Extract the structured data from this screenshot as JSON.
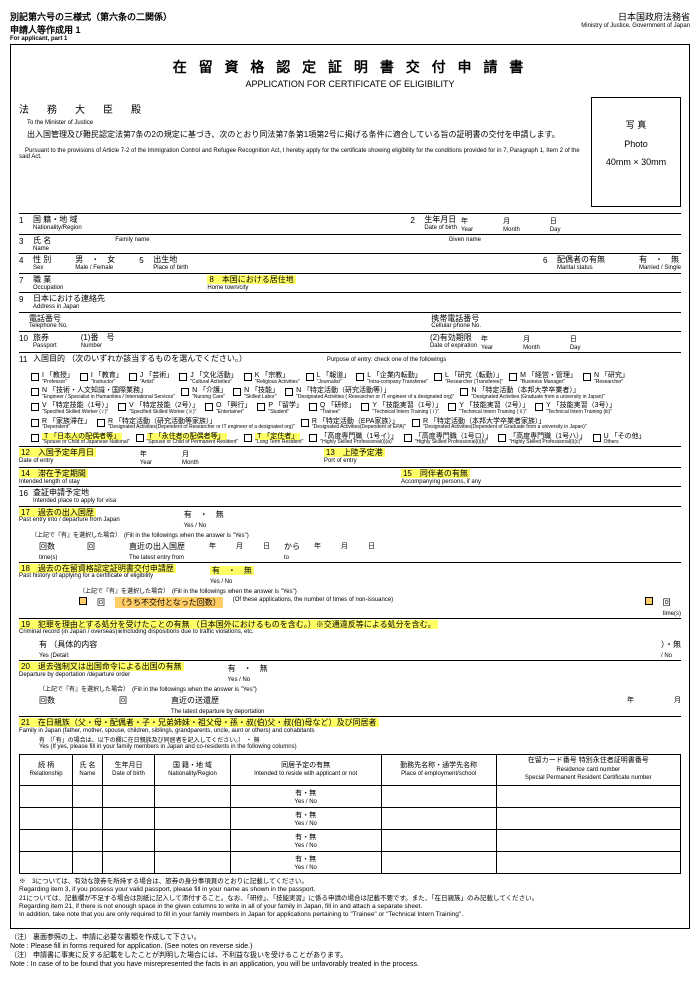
{
  "header": {
    "form_code": "別記第六号の三様式（第六条の二関係）",
    "applicant": "申請人等作成用 1",
    "applicant_en": "For applicant, part 1",
    "ministry_jp": "日本国政府法務省",
    "ministry_en": "Ministry of Justice, Government of Japan"
  },
  "title": {
    "jp": "在 留 資 格 認 定 証 明 書 交 付 申 請 書",
    "en": "APPLICATION FOR CERTIFICATE OF ELIGIBILITY"
  },
  "photo": {
    "label_jp": "写 真",
    "label_en": "Photo",
    "size": "40mm × 30mm"
  },
  "minister": {
    "jp": "法　務　大　臣　殿",
    "en": "To the Minister of Justice"
  },
  "intro": {
    "jp": "出入国管理及び難民認定法第7条の2の規定に基づき、次のとおり同法第7条第1項第2号に掲げる条件に適合している旨の証明書の交付を申請します。",
    "en": "Pursuant to the provisions of Article 7-2 of the Immigration Control and Refugee Recognition Act, I hereby apply for the certificate showing eligibility for the conditions provided for in 7, Paragraph 1, Item 2 of the said Act."
  },
  "fields": {
    "f1": {
      "jp": "国 籍・地 域",
      "en": "Nationality/Region"
    },
    "f2": {
      "jp": "生年月日",
      "en": "Date of birth"
    },
    "year": "年",
    "year_en": "Year",
    "month": "月",
    "month_en": "Month",
    "day": "日",
    "day_en": "Day",
    "f3": {
      "jp": "氏 名",
      "en": "Name"
    },
    "family_name": "Family name",
    "given_name": "Given name",
    "f4": {
      "jp": "性 別",
      "en": "Sex",
      "male_jp": "男",
      "female_jp": "女",
      "male_en": "Male",
      "female_en": "Female"
    },
    "f5": {
      "jp": "出生地",
      "en": "Place of birth"
    },
    "f6": {
      "jp": "配偶者の有無",
      "en": "Marital status",
      "yes_jp": "有",
      "no_jp": "無",
      "yes_en": "Married",
      "no_en": "Single"
    },
    "f7": {
      "jp": "職 業",
      "en": "Occupation"
    },
    "f8": {
      "jp": "本国における居住地",
      "en": "Home town/city"
    },
    "f9": {
      "jp": "日本における連絡先",
      "en": "Address in Japan"
    },
    "tel": {
      "jp": "電話番号",
      "en": "Telephone No."
    },
    "cell": {
      "jp": "携帯電話番号",
      "en": "Cellular phone No."
    },
    "f10": {
      "jp": "旅券",
      "en": "Passport"
    },
    "f10_1": {
      "jp": "(1)番　号",
      "en": "Number"
    },
    "f10_2": {
      "jp": "(2)有効期限",
      "en": "Date of expiration"
    },
    "f11": {
      "jp": "入国目的 （次のいずれか該当するものを選んでください。）",
      "en": "Purpose of entry: check one of the followings"
    },
    "f12": {
      "jp": "入国予定年月日",
      "en": "Date of entry"
    },
    "f13": {
      "jp": "上陸予定港",
      "en": "Port of entry"
    },
    "f14": {
      "jp": "滞在予定期間",
      "en": "Intended length of stay"
    },
    "f15": {
      "jp": "同伴者の有無",
      "en": "Accompanying persons, if any"
    },
    "f16": {
      "jp": "査証申請予定地",
      "en": "Intended place to apply for visa"
    },
    "f17": {
      "jp": "過去の出入国歴",
      "en": "Past entry into / departure from Japan",
      "yes": "有",
      "no": "無",
      "yes_en": "Yes",
      "no_en": "No"
    },
    "f17_sub": "（上記で『有』を選択した場合）　(Fill in the followings when the answer is \"Yes\")",
    "f17_count": {
      "jp": "回数",
      "en": "time(s)",
      "kai": "回"
    },
    "f17_latest": {
      "jp": "直近の出入国歴",
      "en": "The latest entry from",
      "from": "から",
      "to": "to"
    },
    "f18": {
      "jp": "過去の在留資格認定証明書交付申請歴",
      "en": "Past history of applying for a certificate of eligibility",
      "yes": "有",
      "no": "無"
    },
    "f18_sub": "（上記で『有』を選択した場合）　(Fill in the followings when the answer is \"Yes\")",
    "f18_count": "回",
    "f18_reject": "（うち不交付となった回数）",
    "f18_reject_en": "(Of these applications, the number of times of non-issuance)",
    "f18_times": "回",
    "f18_times_en": "time(s)",
    "f19": {
      "jp": "犯罪を理由とする処分を受けたことの有無 （日本国外におけるものを含む。）※交通違反等による処分を含む。",
      "en": "Criminal record (in Japan / overseas)※Including dispositions due to traffic violations, etc."
    },
    "f19_yes": "有 （具体的内容",
    "f19_yes_en": "Yes  (Detail:",
    "f19_no": "）・無",
    "f19_no_en": "/ No",
    "f20": {
      "jp": "退去強制又は出国命令による出国の有無",
      "en": "Departure by deportation /departure order"
    },
    "f20_sub": "（上記で『有』を選択した場合）　(Fill in the followings when the answer is \"Yes\")",
    "f20_count": "回数",
    "f20_kai": "回",
    "f20_latest": "直近の送還歴",
    "f20_latest_en": "The latest departure by deportation",
    "f21": {
      "jp": "在日親族（父・母・配偶者・子・兄弟姉妹・祖父母・孫・叔(伯)父・叔(伯)母など）及び同居者",
      "en": "Family in Japan (father, mother, spouse, children, siblings, grandparents, uncle, aunt or others) and cohabitants"
    },
    "f21_sub": {
      "jp": "有 （「有」の場合は、以下の欄に在日親族及び同居者を記入してください。） ・ 無",
      "en": "Yes  (If yes, please fill in your family members in Japan and co-residents in the following columns)"
    }
  },
  "purpose_items": [
    {
      "code": "I",
      "jp": "「教授」",
      "en": "\"Professor\""
    },
    {
      "code": "I",
      "jp": "「教育」",
      "en": "\"Instructor\""
    },
    {
      "code": "J",
      "jp": "「芸術」",
      "en": "\"Artist\""
    },
    {
      "code": "J",
      "jp": "「文化活動」",
      "en": "\"Cultural Activities\""
    },
    {
      "code": "K",
      "jp": "「宗教」",
      "en": "\"Religious Activities\""
    },
    {
      "code": "L",
      "jp": "「報道」",
      "en": "\"Journalist\""
    },
    {
      "code": "L",
      "jp": "「企業内転勤」",
      "en": "\"Intra-company Transferee\""
    },
    {
      "code": "L",
      "jp": "「研究（転勤）」",
      "en": "\"Researcher (Transferee)\""
    },
    {
      "code": "M",
      "jp": "「経営・管理」",
      "en": "\"Business Manager\""
    },
    {
      "code": "N",
      "jp": "「研究」",
      "en": "\"Researcher\""
    },
    {
      "code": "N",
      "jp": "「技術・人文知識・国際業務」",
      "en": "\"Engineer / Specialist in Humanities / International Services\""
    },
    {
      "code": "N",
      "jp": "「介護」",
      "en": "\"Nursing Care\""
    },
    {
      "code": "N",
      "jp": "「技能」",
      "en": "\"Skilled Labor\""
    },
    {
      "code": "N",
      "jp": "「特定活動（研究活動等）」",
      "en": "\"Designated Activities ( Researcher or IT engineer of a designated org)\""
    },
    {
      "code": "N",
      "jp": "「特定活動（本邦大学卒業者）」",
      "en": "\"Designated Activities (Graduate from a university in Japan)\""
    },
    {
      "code": "V",
      "jp": "「特定技能（1号）」",
      "en": "\"Specified Skilled Worker ( i )\""
    },
    {
      "code": "V",
      "jp": "「特定技能（2号）」",
      "en": "\"Specified Skilled Worker ( ii )\""
    },
    {
      "code": "O",
      "jp": "「興行」",
      "en": "\"Entertainer\""
    },
    {
      "code": "P",
      "jp": "「留学」",
      "en": "\"Student\""
    },
    {
      "code": "Q",
      "jp": "「研修」",
      "en": "\"Trainee\""
    },
    {
      "code": "Y",
      "jp": "「技能実習（1号）」",
      "en": "\"Technical Intern Training ( i )\""
    },
    {
      "code": "Y",
      "jp": "「技能実習（2号）」",
      "en": "\"Technical Intern Training ( ii )\""
    },
    {
      "code": "Y",
      "jp": "「技能実習（3号）」",
      "en": "\"Technical Intern Training (iii)\""
    },
    {
      "code": "R",
      "jp": "「家族滞在」",
      "en": "\"Dependent\""
    },
    {
      "code": "R",
      "jp": "「特定活動（研究活動等家族）」",
      "en": "\"Designated Activities(Dependent of Researcher or IT engineer of a designated org)\""
    },
    {
      "code": "R",
      "jp": "「特定活動（EPA家族）」",
      "en": "\"Designated Activities(Dependent of EPA)\""
    },
    {
      "code": "R",
      "jp": "「特定活動（本邦大学卒業者家族）」",
      "en": "\"Designated Activities(Dependent of Graduate from a university in Japan)\""
    },
    {
      "code": "T",
      "jp": "「日本人の配偶者等」",
      "en": "\"Spouse or Child of Japanese National\"",
      "hl": true
    },
    {
      "code": "T",
      "jp": "「永住者の配偶者等」",
      "en": "\"Spouse or Child of Permanent Resident\"",
      "hl": true
    },
    {
      "code": "T",
      "jp": "「定住者」",
      "en": "\"Long Term Resident\"",
      "hl": true
    },
    {
      "code": "",
      "jp": "「高度専門職（1号イ）」",
      "en": "\"Highly Skilled Professional(i)(a)\""
    },
    {
      "code": "",
      "jp": "「高度専門職（1号ロ）」",
      "en": "\"Highly Skilled Professional(i)(b)\""
    },
    {
      "code": "",
      "jp": "「高度専門職（1号ハ）」",
      "en": "\"Highly Skilled Professional(i)(c)\""
    },
    {
      "code": "U",
      "jp": "「その他」",
      "en": "Others"
    }
  ],
  "family_table": {
    "cols": [
      {
        "jp": "続 柄",
        "en": "Relationship"
      },
      {
        "jp": "氏 名",
        "en": "Name"
      },
      {
        "jp": "生年月日",
        "en": "Date of birth"
      },
      {
        "jp": "国 籍・地 域",
        "en": "Nationality/Region"
      },
      {
        "jp": "同居予定の有無",
        "en": "Intended to reside with applicant or not"
      },
      {
        "jp": "勤務先名称・通学先名称",
        "en": "Place of employment/school"
      },
      {
        "jp": "在留カード番号\n特別永住者証明書番号",
        "en": "Residence card number\nSpecial Permanent Resident Certificate number"
      }
    ],
    "yn": "有・無",
    "yn_en": "Yes / No",
    "rows": 4
  },
  "notes": {
    "l1": "※　3については、有効な旅券を所持する場合は、旅券の身分事項頁のとおりに記載してください。",
    "l2": "Regarding item 3, if you possess your valid passport, please fill in your name as shown in the passport.",
    "l3": "21については、記載欄が不足する場合は別紙に記入して添付すること。なお、「研修」、「技能実習」に係る申請の場合は記載不要です。また、「在日親族」のみ記載してください。",
    "l4": "Regarding item 21, if there is not enough space in the given columns to write in all of your family in Japan, fill in and attach a separate sheet.",
    "l5": "In addition, take note that you are only required to fill in your family members in Japan for applications pertaining to \"Trainee\" or \"Technical Intern Training\"."
  },
  "footer": {
    "l1": "（注） 裏面参照の上、申請に必要な書類を作成して下さい。",
    "l2": "Note : Please fill in forms required for application. (See notes on reverse side.)",
    "l3": "（注） 申請書に事実に反する記載をしたことが判明した場合には、不利益な扱いを受けることがあります。",
    "l4": "Note : In case of to be found that you have misrepresented the facts in an application, you will be unfavorably treated in the process."
  }
}
